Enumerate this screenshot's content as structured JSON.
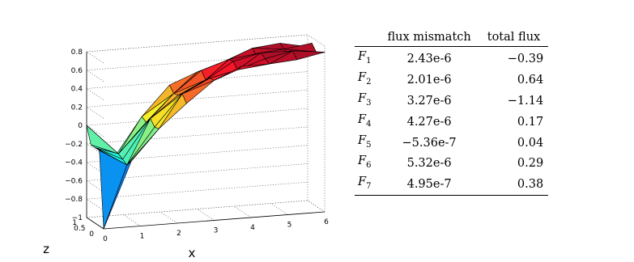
{
  "chart_data": {
    "type": "surface3d",
    "title": "",
    "xlabel": "x",
    "zlabel": "z",
    "ylabel": "",
    "x_ticks": [
      "0",
      "1",
      "2",
      "3",
      "4",
      "5",
      "6"
    ],
    "z_ticks": [
      "0",
      "0.5",
      "1"
    ],
    "v_ticks": [
      "−1",
      "−0.8",
      "−0.6",
      "−0.4",
      "−0.2",
      "0",
      "0.2",
      "0.4",
      "0.6",
      "0.8"
    ],
    "xlim": [
      0,
      6
    ],
    "zlim": [
      0,
      1
    ],
    "vlim": [
      -1,
      0.8
    ],
    "grid": true,
    "colormap": "jet",
    "surface_profile": {
      "x": [
        0,
        0.75,
        1.5,
        2.25,
        3,
        3.75,
        4.5,
        5.25,
        6
      ],
      "value": [
        -1.0,
        -0.33,
        0.05,
        0.33,
        0.5,
        0.62,
        0.68,
        0.7,
        0.7
      ]
    }
  },
  "table": {
    "headers": [
      "",
      "flux mismatch",
      "total flux"
    ],
    "rows": [
      {
        "label": "F",
        "sub": "1",
        "mismatch": "2.43e-6",
        "total": "−0.39"
      },
      {
        "label": "F",
        "sub": "2",
        "mismatch": "2.01e-6",
        "total": "0.64"
      },
      {
        "label": "F",
        "sub": "3",
        "mismatch": "3.27e-6",
        "total": "−1.14"
      },
      {
        "label": "F",
        "sub": "4",
        "mismatch": "4.27e-6",
        "total": "0.17"
      },
      {
        "label": "F",
        "sub": "5",
        "mismatch": "−5.36e-7",
        "total": "0.04"
      },
      {
        "label": "F",
        "sub": "6",
        "mismatch": "5.32e-6",
        "total": "0.29"
      },
      {
        "label": "F",
        "sub": "7",
        "mismatch": "4.95e-7",
        "total": "0.38"
      }
    ]
  }
}
